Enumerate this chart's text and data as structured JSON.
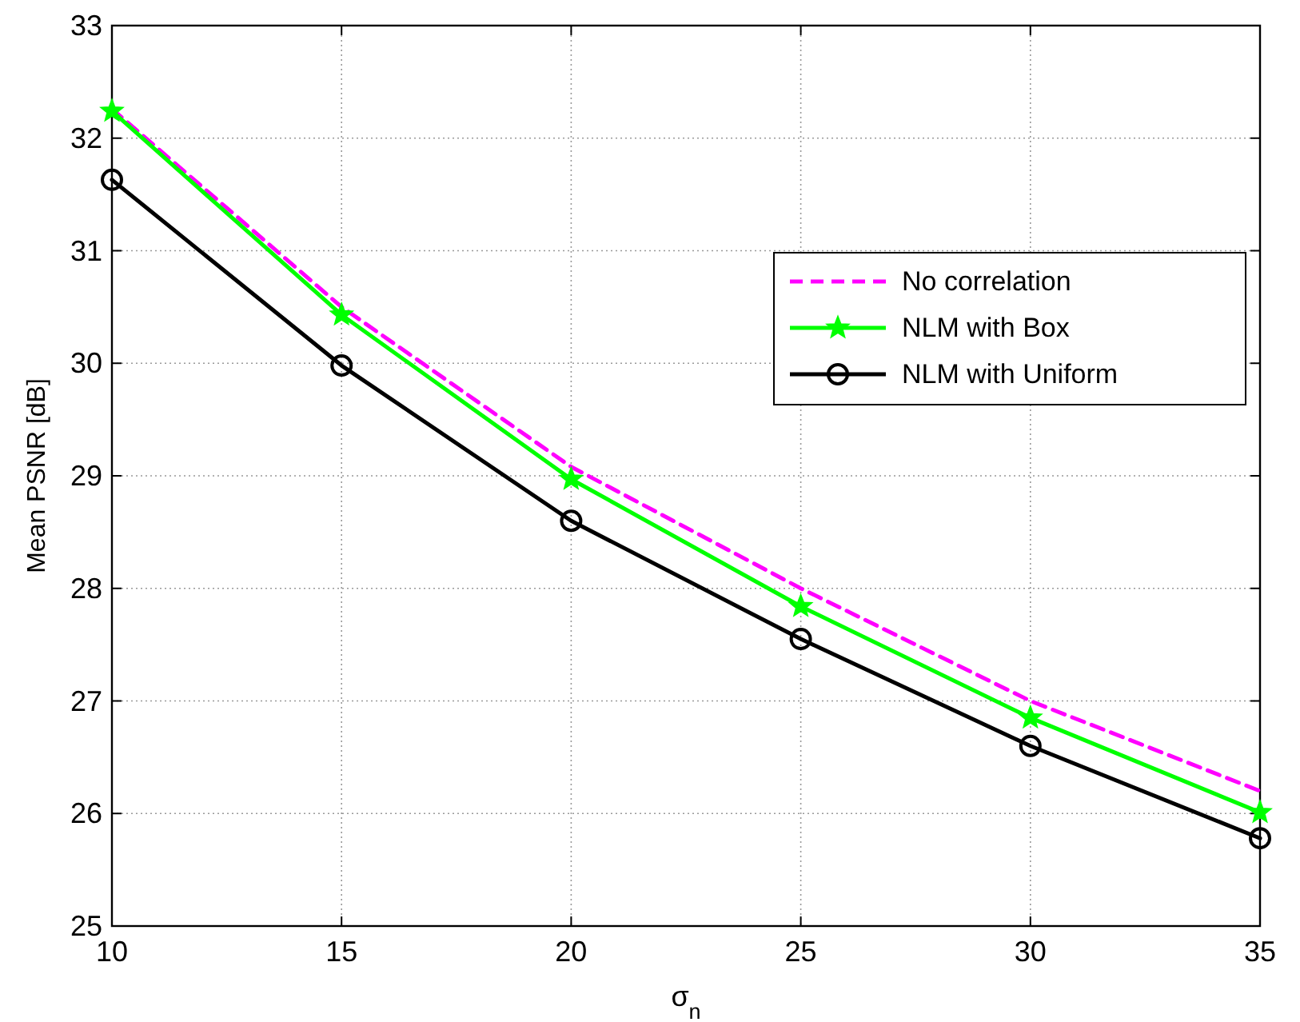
{
  "chart_data": {
    "type": "line",
    "xlabel": "σ$_{n}$",
    "ylabel": "Mean PSNR [dB]",
    "x": [
      10,
      15,
      20,
      25,
      30,
      35
    ],
    "series": [
      {
        "name": "No correlation",
        "color": "#ff00ff",
        "values": [
          32.26,
          30.5,
          29.08,
          28.0,
          27.0,
          26.2
        ],
        "line_style": "dashed",
        "marker": "none"
      },
      {
        "name": "NLM with Box",
        "color": "#00ff00",
        "values": [
          32.24,
          30.43,
          28.97,
          27.84,
          26.85,
          26.01
        ],
        "line_style": "solid",
        "marker": "star"
      },
      {
        "name": "NLM with Uniform",
        "color": "#000000",
        "values": [
          31.63,
          29.98,
          28.6,
          27.55,
          26.6,
          25.78
        ],
        "line_style": "solid",
        "marker": "circle"
      }
    ],
    "xlim": [
      10,
      35
    ],
    "xticks": [
      10,
      15,
      20,
      25,
      30,
      35
    ],
    "ylim": [
      25,
      33
    ],
    "yticks": [
      25,
      26,
      27,
      28,
      29,
      30,
      31,
      32,
      33
    ],
    "grid": true,
    "legend": "right"
  }
}
